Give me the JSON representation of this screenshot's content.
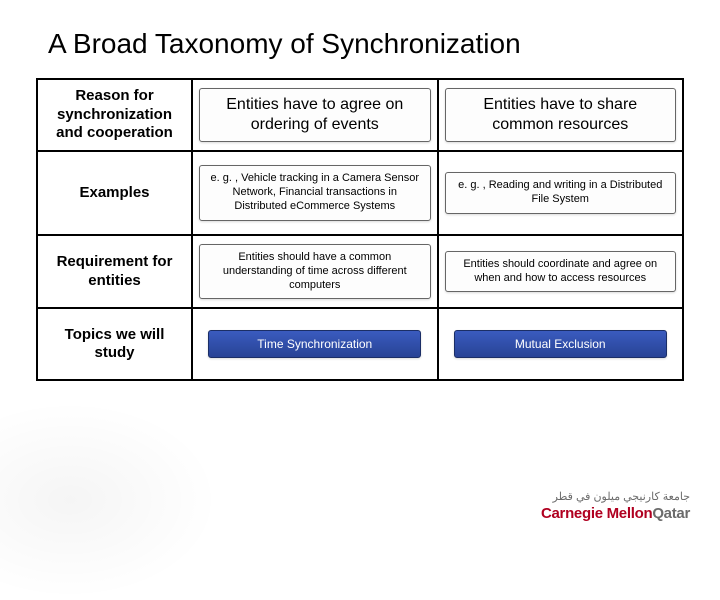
{
  "title": "A Broad Taxonomy of Synchronization",
  "rows": {
    "r0": {
      "label": "Reason for synchronization and cooperation"
    },
    "r1": {
      "label": "Examples"
    },
    "r2": {
      "label": "Requirement for entities"
    },
    "r3": {
      "label": "Topics we will study"
    }
  },
  "cells": {
    "c00": "Entities have to agree on ordering of events",
    "c01": "Entities have to share common resources",
    "c10": "e. g. , Vehicle tracking in a Camera Sensor Network, Financial transactions in Distributed eCommerce Systems",
    "c11": "e. g. , Reading and writing in a Distributed File System",
    "c20": "Entities should have a common understanding of time across different computers",
    "c21": "Entities should coordinate and agree on when and how to access resources",
    "c30": "Time Synchronization",
    "c31": "Mutual Exclusion"
  },
  "footer": {
    "arabic": "جامعة كارنيجي ميلون في قطر",
    "brand1": "Carnegie Mellon",
    "brand2": "Qatar"
  },
  "colors": {
    "dark_gradient_top": "#3a5bbf",
    "dark_gradient_bottom": "#284395",
    "brand_red": "#b00020",
    "brand_gray": "#6b6b6b"
  }
}
